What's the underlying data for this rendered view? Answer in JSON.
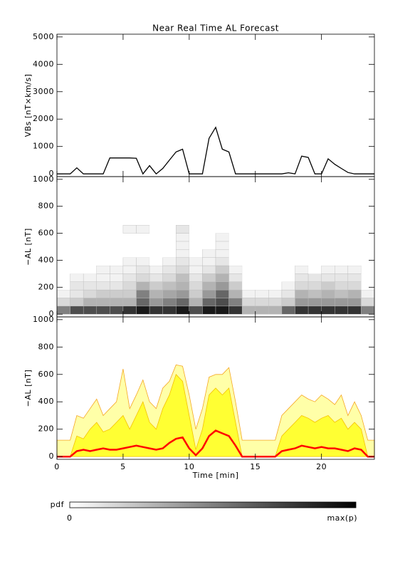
{
  "chart_data": [
    {
      "type": "line",
      "title": "Near Real Time AL Forecast",
      "y_label": "VBs [nT×km/s]",
      "x": [
        0,
        0.5,
        1,
        1.5,
        2,
        2.5,
        3,
        3.5,
        4,
        4.5,
        5,
        5.5,
        6,
        6.5,
        7,
        7.5,
        8,
        8.5,
        9,
        9.5,
        10,
        10.5,
        11,
        11.5,
        12,
        12.5,
        13,
        13.5,
        14,
        14.5,
        15,
        15.5,
        16,
        16.5,
        17,
        17.5,
        18,
        18.5,
        19,
        19.5,
        20,
        20.5,
        21,
        21.5,
        22,
        22.5,
        23,
        23.5,
        24
      ],
      "series": [
        {
          "color": "#000000",
          "values": [
            0,
            0,
            0,
            220,
            0,
            0,
            0,
            0,
            580,
            580,
            580,
            580,
            570,
            0,
            300,
            0,
            200,
            500,
            800,
            900,
            0,
            0,
            0,
            1300,
            1700,
            900,
            800,
            0,
            0,
            0,
            0,
            0,
            0,
            0,
            0,
            40,
            0,
            650,
            600,
            0,
            0,
            550,
            350,
            200,
            50,
            0,
            0,
            0,
            0
          ]
        }
      ],
      "xlim": [
        0,
        24
      ],
      "xticks": [
        0,
        5,
        10,
        15,
        20
      ],
      "ylim": [
        -100,
        5100
      ],
      "yticks": [
        0,
        1000,
        2000,
        3000,
        4000,
        5000
      ]
    },
    {
      "type": "heatmap",
      "y_label": "−AL [nT]",
      "xbins": [
        0,
        1,
        2,
        3,
        4,
        5,
        6,
        7,
        8,
        9,
        10,
        11,
        12,
        13,
        14,
        15,
        16,
        17,
        18,
        19,
        20,
        21,
        22,
        23,
        24
      ],
      "ybins": [
        0,
        60,
        120,
        180,
        240,
        300,
        360,
        420,
        480,
        540,
        600,
        660
      ],
      "z": [
        [
          0.5,
          0.15,
          0.05,
          0,
          0,
          0,
          0,
          0,
          0,
          0,
          0
        ],
        [
          0.7,
          0.2,
          0.1,
          0.1,
          0.05,
          0,
          0,
          0,
          0,
          0,
          0
        ],
        [
          0.7,
          0.3,
          0.15,
          0.1,
          0.05,
          0,
          0,
          0,
          0,
          0,
          0
        ],
        [
          0.7,
          0.3,
          0.2,
          0.1,
          0.05,
          0.05,
          0,
          0,
          0,
          0,
          0
        ],
        [
          0.7,
          0.3,
          0.2,
          0.1,
          0.05,
          0.05,
          0,
          0,
          0,
          0,
          0
        ],
        [
          0.8,
          0.3,
          0.2,
          0.15,
          0.1,
          0.05,
          0.05,
          0,
          0,
          0,
          0.05
        ],
        [
          0.9,
          0.6,
          0.5,
          0.3,
          0.15,
          0.1,
          0.05,
          0,
          0,
          0,
          0.05
        ],
        [
          0.8,
          0.4,
          0.3,
          0.2,
          0.1,
          0.05,
          0,
          0,
          0,
          0,
          0
        ],
        [
          0.8,
          0.5,
          0.35,
          0.25,
          0.15,
          0.1,
          0.05,
          0,
          0,
          0,
          0
        ],
        [
          0.9,
          0.6,
          0.4,
          0.3,
          0.25,
          0.15,
          0.1,
          0.05,
          0.05,
          0.05,
          0.1
        ],
        [
          0.7,
          0.3,
          0.2,
          0.15,
          0.1,
          0.05,
          0.05,
          0,
          0,
          0,
          0
        ],
        [
          0.9,
          0.6,
          0.4,
          0.3,
          0.2,
          0.1,
          0.05,
          0.05,
          0,
          0,
          0
        ],
        [
          0.9,
          0.7,
          0.6,
          0.4,
          0.3,
          0.2,
          0.1,
          0.05,
          0.05,
          0.05,
          0
        ],
        [
          0.8,
          0.5,
          0.3,
          0.2,
          0.1,
          0.05,
          0,
          0,
          0,
          0,
          0
        ],
        [
          0.3,
          0.15,
          0.05,
          0,
          0,
          0,
          0,
          0,
          0,
          0,
          0
        ],
        [
          0.3,
          0.15,
          0.05,
          0,
          0,
          0,
          0,
          0,
          0,
          0,
          0
        ],
        [
          0.3,
          0.15,
          0.05,
          0,
          0,
          0,
          0,
          0,
          0,
          0,
          0
        ],
        [
          0.6,
          0.2,
          0.1,
          0.05,
          0,
          0,
          0,
          0,
          0,
          0,
          0
        ],
        [
          0.8,
          0.4,
          0.3,
          0.15,
          0.1,
          0.05,
          0,
          0,
          0,
          0,
          0
        ],
        [
          0.8,
          0.4,
          0.25,
          0.15,
          0.1,
          0,
          0,
          0,
          0,
          0,
          0
        ],
        [
          0.8,
          0.4,
          0.3,
          0.2,
          0.1,
          0.05,
          0,
          0,
          0,
          0,
          0
        ],
        [
          0.8,
          0.4,
          0.25,
          0.15,
          0.1,
          0.05,
          0,
          0,
          0,
          0,
          0
        ],
        [
          0.8,
          0.4,
          0.3,
          0.15,
          0.1,
          0.05,
          0,
          0,
          0,
          0,
          0
        ],
        [
          0.5,
          0.15,
          0.05,
          0,
          0,
          0,
          0,
          0,
          0,
          0,
          0
        ]
      ],
      "xlim": [
        0,
        24
      ],
      "xticks": [
        0,
        5,
        10,
        15,
        20
      ],
      "ylim": [
        -20,
        1020
      ],
      "yticks": [
        0,
        200,
        400,
        600,
        800,
        1000
      ]
    },
    {
      "type": "area",
      "y_label": "−AL [nT]",
      "x_label": "Time [min]",
      "x": [
        0,
        0.5,
        1,
        1.5,
        2,
        2.5,
        3,
        3.5,
        4,
        4.5,
        5,
        5.5,
        6,
        6.5,
        7,
        7.5,
        8,
        8.5,
        9,
        9.5,
        10,
        10.5,
        11,
        11.5,
        12,
        12.5,
        13,
        13.5,
        14,
        14.5,
        15,
        15.5,
        16,
        16.5,
        17,
        17.5,
        18,
        18.5,
        19,
        19.5,
        20,
        20.5,
        21,
        21.5,
        22,
        22.5,
        23,
        23.5,
        24
      ],
      "series": [
        {
          "color": "#ffffa8",
          "edge": "#f5a623",
          "values": [
            120,
            120,
            120,
            300,
            280,
            350,
            420,
            300,
            350,
            400,
            640,
            350,
            450,
            560,
            400,
            350,
            500,
            550,
            670,
            660,
            450,
            200,
            350,
            580,
            600,
            600,
            650,
            400,
            120,
            120,
            120,
            120,
            120,
            120,
            300,
            350,
            400,
            450,
            420,
            400,
            450,
            420,
            380,
            450,
            300,
            400,
            300,
            120,
            120
          ]
        },
        {
          "color": "#ffff33",
          "edge": "#f5c000",
          "values": [
            0,
            0,
            0,
            150,
            130,
            200,
            250,
            180,
            200,
            250,
            300,
            200,
            300,
            400,
            250,
            200,
            350,
            450,
            600,
            550,
            300,
            50,
            200,
            450,
            500,
            450,
            500,
            250,
            0,
            0,
            0,
            0,
            0,
            0,
            150,
            200,
            250,
            300,
            280,
            250,
            280,
            300,
            250,
            280,
            200,
            250,
            200,
            0,
            0
          ]
        },
        {
          "color": "#ff0000",
          "values": [
            0,
            0,
            0,
            40,
            50,
            40,
            50,
            60,
            50,
            50,
            60,
            70,
            80,
            70,
            60,
            50,
            60,
            100,
            130,
            140,
            60,
            10,
            60,
            150,
            190,
            170,
            150,
            80,
            0,
            0,
            0,
            0,
            0,
            0,
            40,
            50,
            60,
            80,
            70,
            60,
            70,
            60,
            60,
            50,
            40,
            60,
            50,
            0,
            0
          ]
        }
      ],
      "xlim": [
        0,
        24
      ],
      "xticks": [
        0,
        5,
        10,
        15,
        20
      ],
      "ylim": [
        -20,
        1020
      ],
      "yticks": [
        0,
        200,
        400,
        600,
        800,
        1000
      ]
    },
    {
      "type": "colorbar",
      "title": "pdf",
      "labels": [
        "0",
        "max(p)"
      ]
    }
  ]
}
